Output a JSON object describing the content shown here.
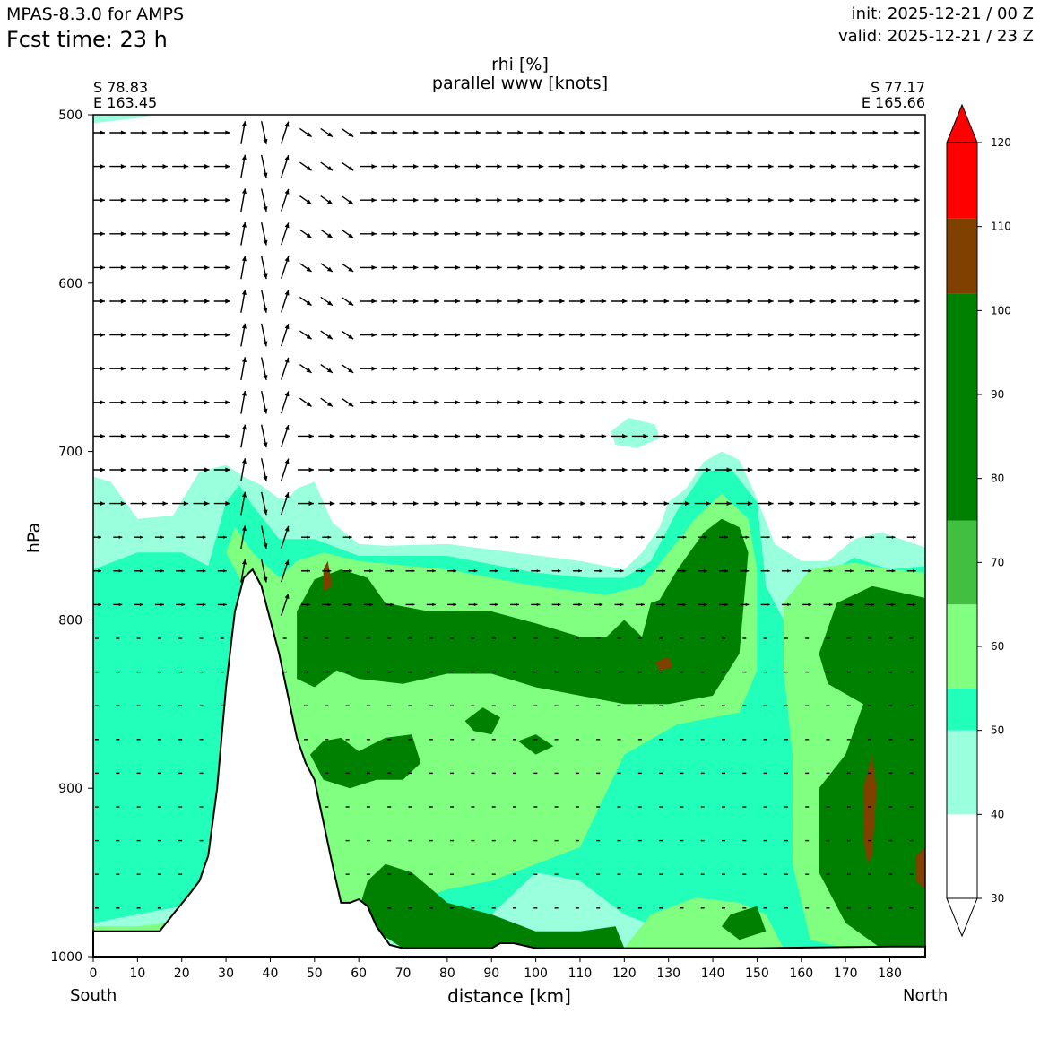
{
  "header": {
    "model": "MPAS-8.3.0 for AMPS",
    "forecast_time": "Fcst time:   23 h",
    "init": "init: 2025-12-21 / 00 Z",
    "valid": "valid: 2025-12-21 / 23 Z"
  },
  "chart_data": {
    "type": "cross-section contour with wind vectors",
    "title": "rhi [%]",
    "subtitle": "parallel www [knots]",
    "xlabel": "distance [km]",
    "ylabel": "hPa",
    "xlim": [
      0,
      188
    ],
    "ylim": [
      1000,
      500
    ],
    "y_scale": "pressure (decreasing upward)",
    "x_ticks": [
      0,
      10,
      20,
      30,
      40,
      50,
      60,
      70,
      80,
      90,
      100,
      110,
      120,
      130,
      140,
      150,
      160,
      170,
      180
    ],
    "y_ticks": [
      500,
      600,
      700,
      800,
      900,
      1000
    ],
    "start_point": {
      "lat": "S 78.83",
      "lon": "E 163.45",
      "side": "South"
    },
    "end_point": {
      "lat": "S 77.17",
      "lon": "E 165.66",
      "side": "North"
    },
    "colorbar": {
      "levels": [
        30,
        40,
        50,
        60,
        70,
        80,
        90,
        100,
        110,
        120
      ],
      "bands": [
        {
          "from": 30,
          "to": 40,
          "color": "#ffffff"
        },
        {
          "from": 40,
          "to": 50,
          "color": "#99ffdd"
        },
        {
          "from": 50,
          "to": 55,
          "color": "#22ffbb"
        },
        {
          "from": 55,
          "to": 65,
          "color": "#80ff80"
        },
        {
          "from": 65,
          "to": 75,
          "color": "#40bf40"
        },
        {
          "from": 75,
          "to": 102,
          "color": "#008000"
        },
        {
          "from": 102,
          "to": 111,
          "color": "#804000"
        },
        {
          "from": 111,
          "to": 120,
          "color": "#ff0000"
        }
      ],
      "extend": "both"
    },
    "terrain_surface_hPa": [
      [
        0,
        985
      ],
      [
        5,
        985
      ],
      [
        10,
        985
      ],
      [
        15,
        985
      ],
      [
        18,
        975
      ],
      [
        22,
        962
      ],
      [
        24,
        955
      ],
      [
        26,
        940
      ],
      [
        28,
        900
      ],
      [
        30,
        840
      ],
      [
        32,
        795
      ],
      [
        34,
        775
      ],
      [
        36,
        770
      ],
      [
        38,
        780
      ],
      [
        40,
        800
      ],
      [
        42,
        820
      ],
      [
        44,
        845
      ],
      [
        46,
        870
      ],
      [
        48,
        885
      ],
      [
        50,
        895
      ],
      [
        52,
        920
      ],
      [
        54,
        945
      ],
      [
        56,
        968
      ],
      [
        58,
        968
      ],
      [
        60,
        966
      ],
      [
        62,
        970
      ],
      [
        64,
        982
      ],
      [
        67,
        993
      ],
      [
        70,
        995
      ],
      [
        80,
        995
      ],
      [
        90,
        995
      ],
      [
        92,
        992
      ],
      [
        95,
        992
      ],
      [
        100,
        995
      ],
      [
        120,
        995
      ],
      [
        150,
        995
      ],
      [
        180,
        994
      ],
      [
        188,
        994
      ]
    ],
    "wind_vectors_note": "parallel wind arrows at each level; strong near-vertical flow over the ridge near 34-46 km above 650 hPa"
  },
  "edge_labels": {
    "south": "South",
    "north": "North"
  }
}
